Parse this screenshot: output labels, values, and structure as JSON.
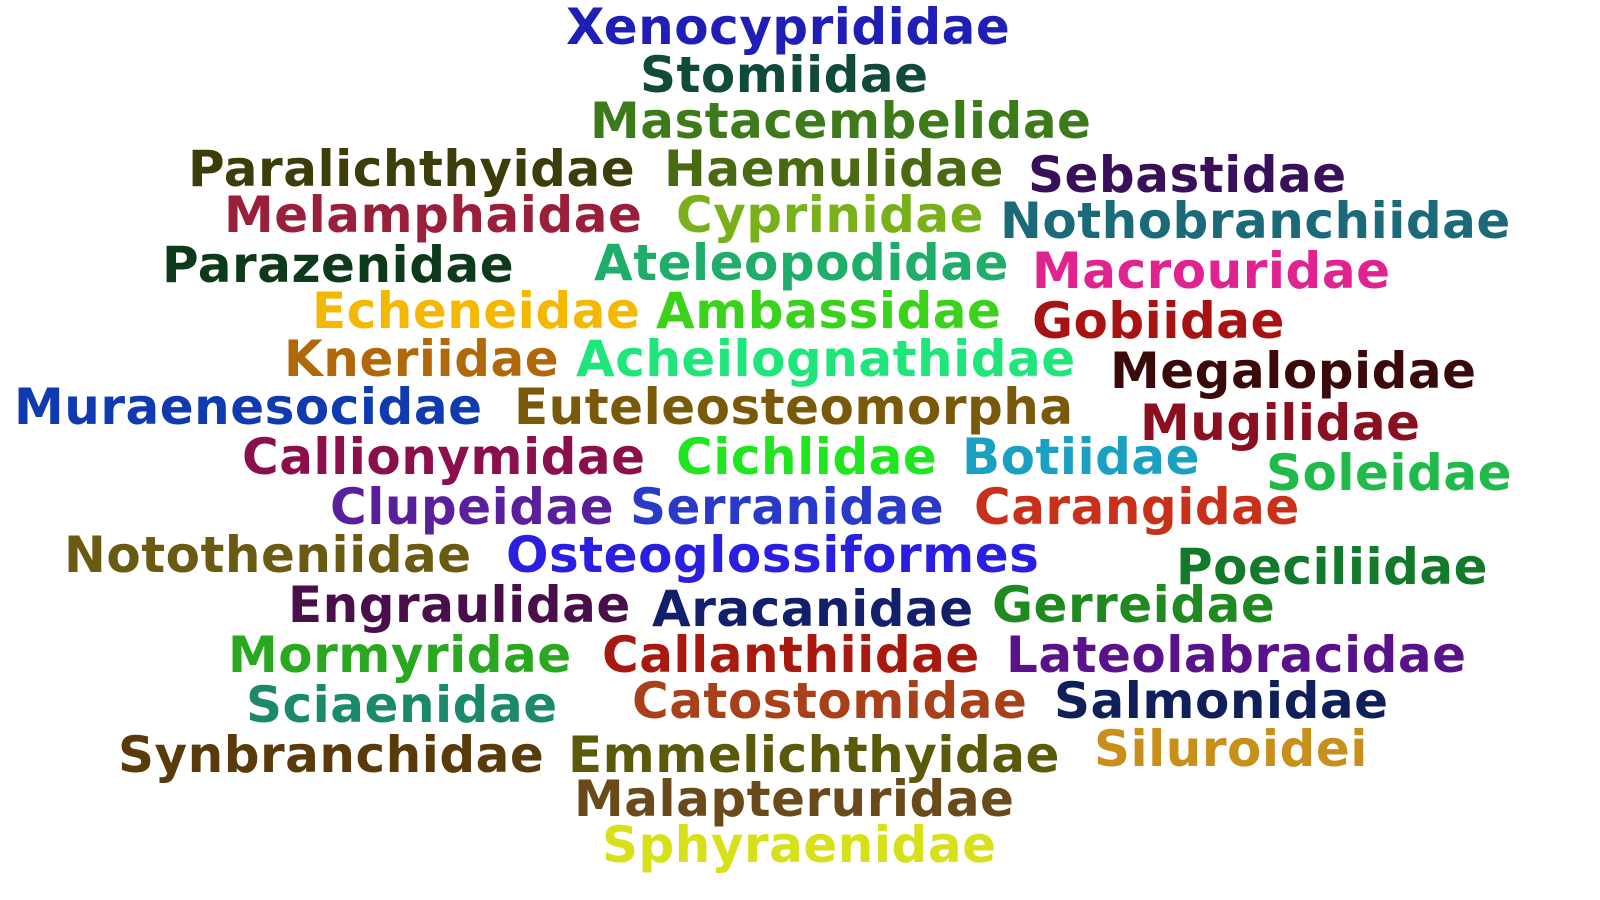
{
  "words": [
    {
      "text": "Xenocyprididae",
      "color": "#1f1fb8"
    },
    {
      "text": "Stomiidae",
      "color": "#0f4a3a"
    },
    {
      "text": "Mastacembelidae",
      "color": "#3d7a1a"
    },
    {
      "text": "Paralichthyidae",
      "color": "#3d3d0a"
    },
    {
      "text": "Haemulidae",
      "color": "#4a6a12"
    },
    {
      "text": "Sebastidae",
      "color": "#3a0f5a"
    },
    {
      "text": "Melamphaidae",
      "color": "#9a1f3a"
    },
    {
      "text": "Cyprinidae",
      "color": "#7ab11a"
    },
    {
      "text": "Nothobranchiidae",
      "color": "#1a6a7a"
    },
    {
      "text": "Parazenidae",
      "color": "#0d3a1a"
    },
    {
      "text": "Ateleopodidae",
      "color": "#1fae6a"
    },
    {
      "text": "Macrouridae",
      "color": "#e0238f"
    },
    {
      "text": "Echeneidae",
      "color": "#f5b800"
    },
    {
      "text": "Ambassidae",
      "color": "#3ad21a"
    },
    {
      "text": "Gobiidae",
      "color": "#a81212"
    },
    {
      "text": "Kneriidae",
      "color": "#b0680a"
    },
    {
      "text": "Acheilognathidae",
      "color": "#1fe67a"
    },
    {
      "text": "Megalopidae",
      "color": "#3a0a0a"
    },
    {
      "text": "Muraenesocidae",
      "color": "#0f3ab0"
    },
    {
      "text": "Euteleosteomorpha",
      "color": "#7a5a0a"
    },
    {
      "text": "Mugilidae",
      "color": "#8a0f1f"
    },
    {
      "text": "Callionymidae",
      "color": "#8a0f4a"
    },
    {
      "text": "Cichlidae",
      "color": "#1fe61f"
    },
    {
      "text": "Botiidae",
      "color": "#1aa0c0"
    },
    {
      "text": "Soleidae",
      "color": "#1fba4a"
    },
    {
      "text": "Clupeidae",
      "color": "#5a1f9a"
    },
    {
      "text": "Serranidae",
      "color": "#2a3ac8"
    },
    {
      "text": "Carangidae",
      "color": "#c8301a"
    },
    {
      "text": "Nototheniidae",
      "color": "#6a5a12"
    },
    {
      "text": "Osteoglossiformes",
      "color": "#2a1fe0"
    },
    {
      "text": "Poeciliidae",
      "color": "#127a2a"
    },
    {
      "text": "Engraulidae",
      "color": "#4a0f4a"
    },
    {
      "text": "Aracanidae",
      "color": "#121f6a"
    },
    {
      "text": "Gerreidae",
      "color": "#1f8a1f"
    },
    {
      "text": "Mormyridae",
      "color": "#2aa81f"
    },
    {
      "text": "Callanthiidae",
      "color": "#a81a0f"
    },
    {
      "text": "Lateolabracidae",
      "color": "#5a128a"
    },
    {
      "text": "Sciaenidae",
      "color": "#1a8a6a"
    },
    {
      "text": "Catostomidae",
      "color": "#a8401a"
    },
    {
      "text": "Salmonidae",
      "color": "#0f1f5a"
    },
    {
      "text": "Synbranchidae",
      "color": "#5a3a0a"
    },
    {
      "text": "Emmelichthyidae",
      "color": "#5a5a0a"
    },
    {
      "text": "Siluroidei",
      "color": "#c8901a"
    },
    {
      "text": "Malapteruridae",
      "color": "#6a4a1a"
    },
    {
      "text": "Sphyraenidae",
      "color": "#d8e01a"
    }
  ]
}
